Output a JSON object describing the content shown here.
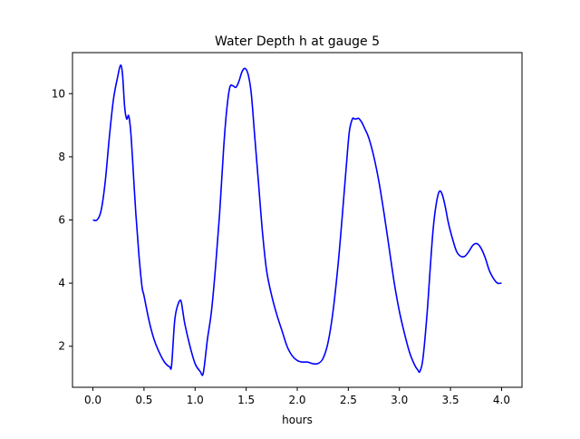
{
  "chart_data": {
    "type": "line",
    "title": "Water Depth h at gauge 5",
    "xlabel": "hours",
    "ylabel": "",
    "xlim": [
      -0.2,
      4.2
    ],
    "ylim": [
      0.7,
      11.3
    ],
    "x_ticks": [
      0.0,
      0.5,
      1.0,
      1.5,
      2.0,
      2.5,
      3.0,
      3.5,
      4.0
    ],
    "x_tick_labels": [
      "0.0",
      "0.5",
      "1.0",
      "1.5",
      "2.0",
      "2.5",
      "3.0",
      "3.5",
      "4.0"
    ],
    "y_ticks": [
      2,
      4,
      6,
      8,
      10
    ],
    "y_tick_labels": [
      "2",
      "4",
      "6",
      "8",
      "10"
    ],
    "grid": false,
    "legend": "none",
    "series": [
      {
        "color": "#0000ff",
        "x": [
          0.0,
          0.04,
          0.08,
          0.12,
          0.16,
          0.2,
          0.24,
          0.27,
          0.29,
          0.31,
          0.33,
          0.35,
          0.37,
          0.39,
          0.42,
          0.45,
          0.48,
          0.5,
          0.55,
          0.6,
          0.65,
          0.7,
          0.75,
          0.77,
          0.8,
          0.83,
          0.86,
          0.88,
          0.9,
          0.95,
          1.0,
          1.05,
          1.08,
          1.12,
          1.16,
          1.2,
          1.24,
          1.28,
          1.31,
          1.34,
          1.37,
          1.4,
          1.43,
          1.46,
          1.49,
          1.52,
          1.55,
          1.58,
          1.62,
          1.66,
          1.7,
          1.75,
          1.8,
          1.85,
          1.9,
          1.95,
          2.0,
          2.05,
          2.1,
          2.15,
          2.2,
          2.25,
          2.3,
          2.35,
          2.4,
          2.44,
          2.48,
          2.51,
          2.54,
          2.56,
          2.58,
          2.6,
          2.63,
          2.66,
          2.7,
          2.75,
          2.8,
          2.85,
          2.9,
          2.95,
          3.0,
          3.05,
          3.1,
          3.15,
          3.18,
          3.2,
          3.23,
          3.27,
          3.3,
          3.33,
          3.36,
          3.39,
          3.42,
          3.45,
          3.48,
          3.52,
          3.56,
          3.6,
          3.64,
          3.68,
          3.72,
          3.76,
          3.8,
          3.84,
          3.88,
          3.92,
          3.96,
          4.0
        ],
        "y": [
          6.0,
          6.0,
          6.3,
          7.2,
          8.6,
          9.8,
          10.5,
          10.9,
          10.6,
          9.6,
          9.2,
          9.3,
          8.8,
          7.8,
          6.2,
          4.9,
          3.9,
          3.6,
          2.8,
          2.2,
          1.8,
          1.5,
          1.35,
          1.4,
          2.8,
          3.3,
          3.45,
          3.1,
          2.7,
          2.0,
          1.45,
          1.2,
          1.15,
          2.2,
          3.1,
          4.5,
          6.2,
          8.3,
          9.5,
          10.2,
          10.25,
          10.2,
          10.4,
          10.7,
          10.8,
          10.6,
          10.0,
          8.8,
          7.2,
          5.6,
          4.4,
          3.6,
          3.0,
          2.5,
          2.0,
          1.7,
          1.55,
          1.5,
          1.5,
          1.45,
          1.45,
          1.6,
          2.1,
          3.1,
          4.6,
          6.1,
          7.7,
          8.8,
          9.2,
          9.2,
          9.2,
          9.22,
          9.1,
          8.9,
          8.6,
          8.0,
          7.2,
          6.2,
          5.1,
          4.0,
          3.1,
          2.4,
          1.8,
          1.4,
          1.25,
          1.2,
          1.6,
          3.0,
          4.4,
          5.7,
          6.5,
          6.9,
          6.8,
          6.4,
          5.9,
          5.4,
          5.0,
          4.85,
          4.85,
          5.0,
          5.2,
          5.25,
          5.1,
          4.8,
          4.4,
          4.15,
          4.0,
          4.0
        ]
      }
    ]
  }
}
